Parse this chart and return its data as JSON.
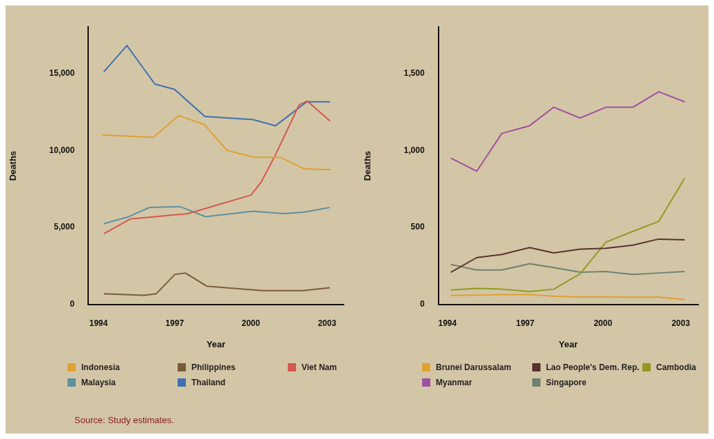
{
  "chart_data": [
    {
      "type": "line",
      "xlabel": "Year",
      "ylabel": "Deaths",
      "xlim": [
        1993.6,
        2003.65
      ],
      "xticks": [
        {
          "value": 1994,
          "label": "1994"
        },
        {
          "value": 1997,
          "label": "1997"
        },
        {
          "value": 2000,
          "label": "2000"
        },
        {
          "value": 2003,
          "label": "2003"
        }
      ],
      "ylim": [
        0,
        18000
      ],
      "yticks": [
        {
          "value": 0,
          "label": "0"
        },
        {
          "value": 5000,
          "label": "5,000"
        },
        {
          "value": 10000,
          "label": "10,000"
        },
        {
          "value": 15000,
          "label": "15,000"
        }
      ],
      "grid": false,
      "legend": "bottom",
      "marker": "none",
      "annotations": [
        "Source: Study estimates."
      ],
      "series": [
        {
          "name": "Indonesia",
          "color": "#e0a030",
          "x": [
            1994.15,
            1996.16,
            1997.16,
            1998.15,
            1999.06,
            2000.12,
            2001.16,
            2002.1,
            2003.15
          ],
          "values": [
            11000,
            10850,
            12250,
            11700,
            10000,
            9550,
            9550,
            8800,
            8750
          ]
        },
        {
          "name": "Philippines",
          "color": "#7a5a3a",
          "x": [
            1994.21,
            1995.79,
            1996.27,
            1997.0,
            1997.42,
            1998.26,
            2000.47,
            2002.03,
            2003.11
          ],
          "values": [
            700,
            600,
            700,
            1950,
            2050,
            1200,
            900,
            900,
            1100
          ]
        },
        {
          "name": "Viet Nam",
          "color": "#d4584e",
          "x": [
            1994.21,
            1995.25,
            1996.22,
            1997.52,
            2000.0,
            2000.39,
            2000.95,
            2001.9,
            2002.22,
            2003.12
          ],
          "values": [
            4600,
            5550,
            5700,
            5900,
            7100,
            7900,
            9650,
            12950,
            13200,
            11900
          ]
        },
        {
          "name": "Malaysia",
          "color": "#6090a0",
          "x": [
            1994.21,
            1995.19,
            1996.01,
            1997.22,
            1998.22,
            2000.08,
            2001.33,
            2002.1,
            2003.11
          ],
          "values": [
            5250,
            5700,
            6300,
            6350,
            5700,
            6050,
            5900,
            6000,
            6300
          ]
        },
        {
          "name": "Thailand",
          "color": "#4070b0",
          "x": [
            1994.21,
            1995.12,
            1996.22,
            1997.0,
            1998.19,
            2000.08,
            2000.97,
            2002.2,
            2003.12
          ],
          "values": [
            15100,
            16800,
            14300,
            13950,
            12200,
            12000,
            11600,
            13150,
            13150
          ]
        }
      ]
    },
    {
      "type": "line",
      "xlabel": "Year",
      "ylabel": "Deaths",
      "xlim": [
        1993.65,
        2003.67
      ],
      "xticks": [
        {
          "value": 1994,
          "label": "1994"
        },
        {
          "value": 1997,
          "label": "1997"
        },
        {
          "value": 2000,
          "label": "2000"
        },
        {
          "value": 2003,
          "label": "2003"
        }
      ],
      "ylim": [
        0,
        1800
      ],
      "yticks": [
        {
          "value": 0,
          "label": "0"
        },
        {
          "value": 500,
          "label": "500"
        },
        {
          "value": 1000,
          "label": "1,000"
        },
        {
          "value": 1500,
          "label": "1,500"
        }
      ],
      "grid": false,
      "legend": "bottom",
      "marker": "none",
      "x": [
        1994.13,
        1995.13,
        1996.1,
        1997.17,
        1998.1,
        1999.12,
        2000.11,
        2001.15,
        2002.15,
        2003.15
      ],
      "series": [
        {
          "name": "Brunei Darussalam",
          "color": "#e0a030",
          "values": [
            60,
            62,
            65,
            65,
            55,
            49,
            49,
            48,
            48,
            32
          ]
        },
        {
          "name": "Lao People's Dem. Rep.",
          "color": "#5a3030",
          "values": [
            210,
            305,
            325,
            370,
            335,
            360,
            365,
            385,
            425,
            420
          ]
        },
        {
          "name": "Cambodia",
          "color": "#909a20",
          "values": [
            95,
            105,
            100,
            85,
            100,
            200,
            405,
            475,
            540,
            820
          ]
        },
        {
          "name": "Myanmar",
          "color": "#a050a0",
          "values": [
            950,
            865,
            1110,
            1160,
            1280,
            1210,
            1280,
            1280,
            1380,
            1315
          ]
        },
        {
          "name": "Singapore",
          "color": "#708070",
          "values": [
            260,
            225,
            225,
            265,
            240,
            210,
            215,
            195,
            205,
            215
          ]
        }
      ]
    }
  ]
}
